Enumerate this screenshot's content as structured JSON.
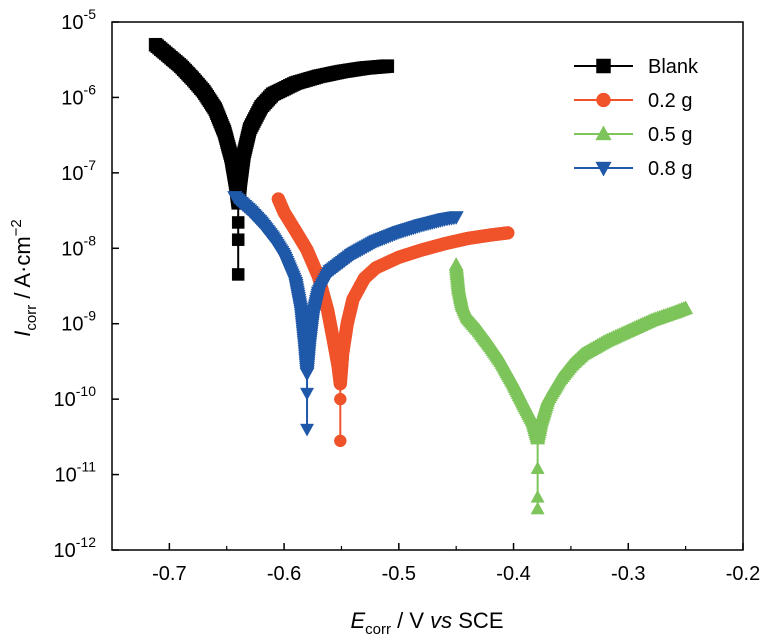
{
  "chart_data": {
    "type": "line",
    "xlabel": {
      "main": "E",
      "sub": "corr",
      "rest": " / V ",
      "italic": "vs",
      "tail": " SCE"
    },
    "ylabel": {
      "main": "I",
      "sub": "corr",
      "rest": " / A·cm",
      "sup": "−2"
    },
    "xlim": [
      -0.75,
      -0.2
    ],
    "ylim": [
      1e-12,
      1e-05
    ],
    "yscale": "log",
    "x_ticks": [
      -0.7,
      -0.6,
      -0.5,
      -0.4,
      -0.3,
      -0.2
    ],
    "x_tick_labels": [
      "-0.7",
      "-0.6",
      "-0.5",
      "-0.4",
      "-0.3",
      "-0.2"
    ],
    "y_ticks": [
      {
        "value": 1e-12,
        "base": "10",
        "exp": "-12"
      },
      {
        "value": 1e-11,
        "base": "10",
        "exp": "-11"
      },
      {
        "value": 1e-10,
        "base": "10",
        "exp": "-10"
      },
      {
        "value": 1e-09,
        "base": "10",
        "exp": "-9"
      },
      {
        "value": 1e-08,
        "base": "10",
        "exp": "-8"
      },
      {
        "value": 1e-07,
        "base": "10",
        "exp": "-7"
      },
      {
        "value": 1e-06,
        "base": "10",
        "exp": "-6"
      },
      {
        "value": 1e-05,
        "base": "10",
        "exp": "-5"
      }
    ],
    "grid": false,
    "legend_position": "top-right",
    "series": [
      {
        "name": "Blank",
        "color": "#000000",
        "marker": "square",
        "cathodic": [
          [
            -0.712,
            5e-06
          ],
          [
            -0.7,
            3.5e-06
          ],
          [
            -0.69,
            2.6e-06
          ],
          [
            -0.68,
            1.8e-06
          ],
          [
            -0.67,
            1.2e-06
          ],
          [
            -0.66,
            7e-07
          ],
          [
            -0.652,
            3.5e-07
          ],
          [
            -0.646,
            1.6e-07
          ],
          [
            -0.642,
            7e-08
          ],
          [
            -0.64,
            4e-08
          ]
        ],
        "anodic": [
          [
            -0.64,
            4e-08
          ],
          [
            -0.638,
            8e-08
          ],
          [
            -0.635,
            1.8e-07
          ],
          [
            -0.63,
            3.8e-07
          ],
          [
            -0.62,
            7.5e-07
          ],
          [
            -0.61,
            1.1e-06
          ],
          [
            -0.59,
            1.55e-06
          ],
          [
            -0.57,
            1.9e-06
          ],
          [
            -0.55,
            2.2e-06
          ],
          [
            -0.53,
            2.45e-06
          ],
          [
            -0.51,
            2.6e-06
          ]
        ],
        "tail": [
          [
            -0.64,
            4e-08
          ],
          [
            -0.64,
            2.2e-08
          ],
          [
            -0.64,
            1.3e-08
          ],
          [
            -0.64,
            4.5e-09
          ]
        ]
      },
      {
        "name": "0.2 g",
        "color": "#f0522a",
        "marker": "circle",
        "cathodic": [
          [
            -0.605,
            4.5e-08
          ],
          [
            -0.6,
            3e-08
          ],
          [
            -0.59,
            1.7e-08
          ],
          [
            -0.58,
            9.5e-09
          ],
          [
            -0.57,
            4.2e-09
          ],
          [
            -0.562,
            1.5e-09
          ],
          [
            -0.557,
            6e-10
          ],
          [
            -0.553,
            2.8e-10
          ],
          [
            -0.551,
            1.6e-10
          ]
        ],
        "anodic": [
          [
            -0.551,
            1.6e-10
          ],
          [
            -0.549,
            4e-10
          ],
          [
            -0.545,
            1e-09
          ],
          [
            -0.54,
            2.1e-09
          ],
          [
            -0.53,
            4e-09
          ],
          [
            -0.52,
            5.5e-09
          ],
          [
            -0.5,
            7.6e-09
          ],
          [
            -0.48,
            9.5e-09
          ],
          [
            -0.46,
            1.15e-08
          ],
          [
            -0.44,
            1.35e-08
          ],
          [
            -0.42,
            1.5e-08
          ],
          [
            -0.405,
            1.6e-08
          ]
        ],
        "tail": [
          [
            -0.551,
            1.6e-10
          ],
          [
            -0.551,
            1e-10
          ],
          [
            -0.551,
            2.8e-11
          ]
        ]
      },
      {
        "name": "0.5 g",
        "color": "#7dc45a",
        "marker": "triangle-up",
        "cathodic": [
          [
            -0.45,
            6e-09
          ],
          [
            -0.448,
            3e-09
          ],
          [
            -0.445,
            1.8e-09
          ],
          [
            -0.44,
            1.2e-09
          ],
          [
            -0.43,
            8e-10
          ],
          [
            -0.42,
            5e-10
          ],
          [
            -0.41,
            3e-10
          ],
          [
            -0.4,
            1.6e-10
          ],
          [
            -0.39,
            8e-11
          ],
          [
            -0.383,
            5e-11
          ],
          [
            -0.379,
            3e-11
          ]
        ],
        "anodic": [
          [
            -0.379,
            3e-11
          ],
          [
            -0.376,
            5e-11
          ],
          [
            -0.37,
            1e-10
          ],
          [
            -0.36,
            1.8e-10
          ],
          [
            -0.35,
            2.8e-10
          ],
          [
            -0.34,
            3.9e-10
          ],
          [
            -0.32,
            5.8e-10
          ],
          [
            -0.3,
            8e-10
          ],
          [
            -0.28,
            1.1e-09
          ],
          [
            -0.26,
            1.4e-09
          ],
          [
            -0.25,
            1.6e-09
          ]
        ],
        "tail": [
          [
            -0.379,
            3e-11
          ],
          [
            -0.379,
            1.2e-11
          ],
          [
            -0.379,
            5e-12
          ],
          [
            -0.379,
            3.5e-12
          ]
        ]
      },
      {
        "name": "0.8 g",
        "color": "#1f58a8",
        "marker": "triangle-down",
        "cathodic": [
          [
            -0.643,
            4.8e-08
          ],
          [
            -0.63,
            3.2e-08
          ],
          [
            -0.62,
            2.2e-08
          ],
          [
            -0.61,
            1.4e-08
          ],
          [
            -0.6,
            8e-09
          ],
          [
            -0.59,
            3.5e-09
          ],
          [
            -0.585,
            1.4e-09
          ],
          [
            -0.582,
            5e-10
          ],
          [
            -0.58,
            2.2e-10
          ]
        ],
        "anodic": [
          [
            -0.58,
            2.2e-10
          ],
          [
            -0.578,
            5e-10
          ],
          [
            -0.575,
            1.2e-09
          ],
          [
            -0.57,
            2.6e-09
          ],
          [
            -0.56,
            5e-09
          ],
          [
            -0.54,
            8.5e-09
          ],
          [
            -0.52,
            1.25e-08
          ],
          [
            -0.5,
            1.65e-08
          ],
          [
            -0.48,
            2.05e-08
          ],
          [
            -0.46,
            2.45e-08
          ],
          [
            -0.45,
            2.6e-08
          ]
        ],
        "tail": [
          [
            -0.58,
            2.2e-10
          ],
          [
            -0.58,
            1.2e-10
          ],
          [
            -0.58,
            4e-11
          ]
        ]
      }
    ]
  }
}
